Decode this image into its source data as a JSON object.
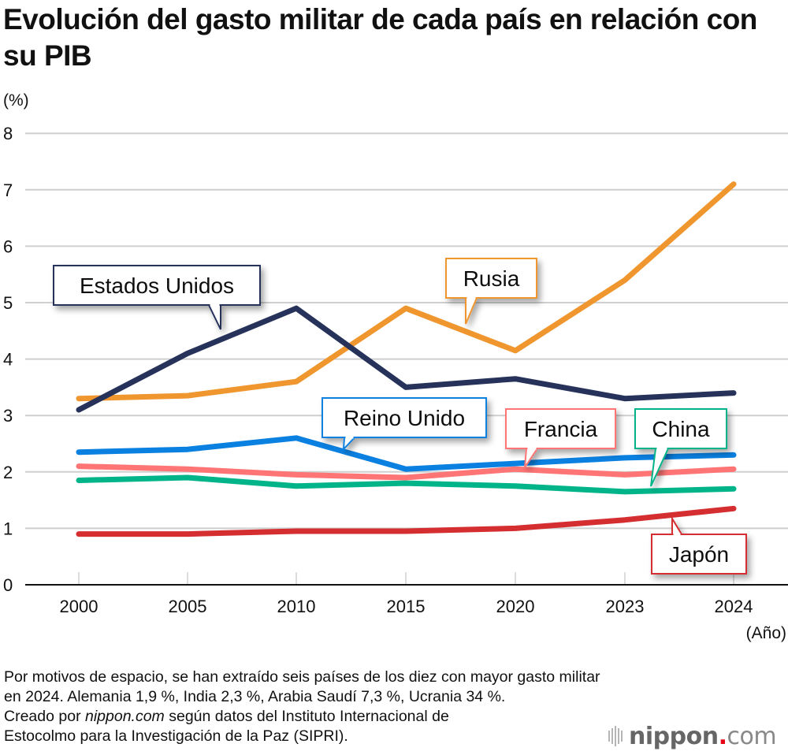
{
  "title": "Evolución del gasto militar de cada país en relación con su PIB",
  "footer": {
    "line1": "Por motivos de espacio, se han extraído seis países de los diez con mayor gasto militar",
    "line2": "en 2024. Alemania 1,9 %, India 2,3 %, Arabia Saudí 7,3 %, Ucrania 34 %.",
    "line3_prefix": "Creado por ",
    "line3_italic": "nippon.com",
    "line3_suffix": " según datos del Instituto Internacional de",
    "line4": "Estocolmo para la Investigación de la Paz (SIPRI)."
  },
  "logo": {
    "main": "nippon",
    "dot": ".",
    "com": "com",
    "dot_color": "#e60012"
  },
  "chart_data": {
    "type": "line",
    "title": "Evolución del gasto militar de cada país en relación con su PIB",
    "xlabel": "(Año)",
    "ylabel": "(%)",
    "x": [
      "2000",
      "2005",
      "2010",
      "2015",
      "2020",
      "2023",
      "2024"
    ],
    "yticks": [
      "0",
      "1",
      "2",
      "3",
      "4",
      "5",
      "6",
      "7",
      "8"
    ],
    "ylim": [
      0,
      8
    ],
    "grid": true,
    "legend": "callouts",
    "series": [
      {
        "name": "Estados Unidos",
        "color": "#26325a",
        "values": [
          3.1,
          4.1,
          4.9,
          3.5,
          3.65,
          3.3,
          3.4
        ]
      },
      {
        "name": "Rusia",
        "color": "#f0962e",
        "values": [
          3.3,
          3.35,
          3.6,
          4.9,
          4.15,
          5.4,
          7.1
        ]
      },
      {
        "name": "Reino Unido",
        "color": "#0a80e0",
        "values": [
          2.35,
          2.4,
          2.6,
          2.05,
          2.15,
          2.25,
          2.3
        ]
      },
      {
        "name": "Francia",
        "color": "#ff7575",
        "values": [
          2.1,
          2.05,
          1.95,
          1.9,
          2.05,
          1.95,
          2.05
        ]
      },
      {
        "name": "China",
        "color": "#00b48a",
        "values": [
          1.85,
          1.9,
          1.75,
          1.8,
          1.75,
          1.65,
          1.7
        ]
      },
      {
        "name": "Japón",
        "color": "#d52e31",
        "values": [
          0.9,
          0.9,
          0.95,
          0.95,
          1.0,
          1.15,
          1.35
        ]
      }
    ]
  }
}
